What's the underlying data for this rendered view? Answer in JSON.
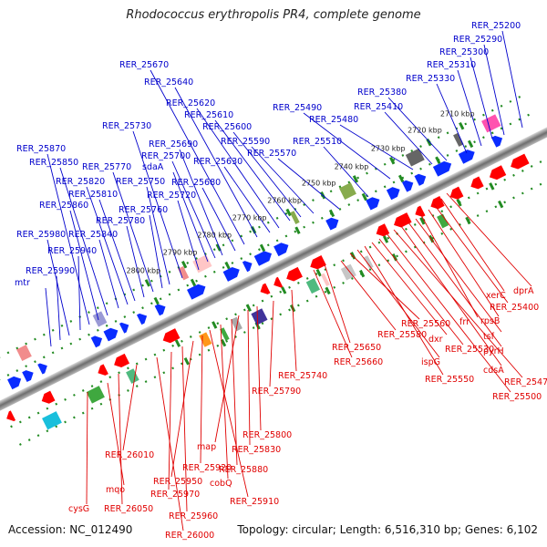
{
  "title": "Rhodococcus erythropolis PR4, complete genome",
  "footer": {
    "accession": "Accession: NC_012490",
    "topology": "Topology: circular; Length: 6,516,310 bp; Genes: 6,102"
  },
  "colors": {
    "forward_label": "#0000cc",
    "reverse_label": "#e00000",
    "backbone": "#7a7a7a",
    "tick": "#228b22",
    "forward_gene": "#0a2cff",
    "reverse_gene": "#ff0000"
  },
  "scale_ticks": [
    "2710 kbp",
    "2720 kbp",
    "2730 kbp",
    "2740 kbp",
    "2750 kbp",
    "2760 kbp",
    "2770 kbp",
    "2780 kbp",
    "2790 kbp",
    "2800 kbp"
  ],
  "forward_labels": [
    "RER_25200",
    "RER_25290",
    "RER_25300",
    "RER_25310",
    "RER_25330",
    "RER_25380",
    "RER_25410",
    "RER_25480",
    "RER_25490",
    "RER_25510",
    "RER_25570",
    "RER_25590",
    "RER_25600",
    "RER_25610",
    "RER_25620",
    "RER_25630",
    "RER_25640",
    "RER_25670",
    "RER_25680",
    "RER_25690",
    "RER_25700",
    "sdaA",
    "RER_25720",
    "RER_25730",
    "RER_25750",
    "RER_25760",
    "RER_25770",
    "RER_25780",
    "RER_25810",
    "RER_25820",
    "RER_25840",
    "RER_25850",
    "RER_25860",
    "RER_25870",
    "RER_25940",
    "RER_25980",
    "RER_25990",
    "mtr"
  ],
  "reverse_labels": [
    "dprA",
    "xerC",
    "RER_25400",
    "rpsB",
    "frr",
    "tsf",
    "pyrH",
    "cdsA",
    "RER_25470",
    "RER_25500",
    "RER_25530",
    "dxr",
    "RER_25550",
    "ispG",
    "RER_25560",
    "RER_25580",
    "RER_25650",
    "RER_25660",
    "RER_25740",
    "RER_25790",
    "RER_25800",
    "RER_25830",
    "map",
    "RER_25880",
    "cobQ",
    "RER_25910",
    "RER_25920",
    "RER_25950",
    "RER_25960",
    "RER_25970",
    "RER_26000",
    "RER_26010",
    "RER_26050",
    "mqo",
    "cysG"
  ]
}
